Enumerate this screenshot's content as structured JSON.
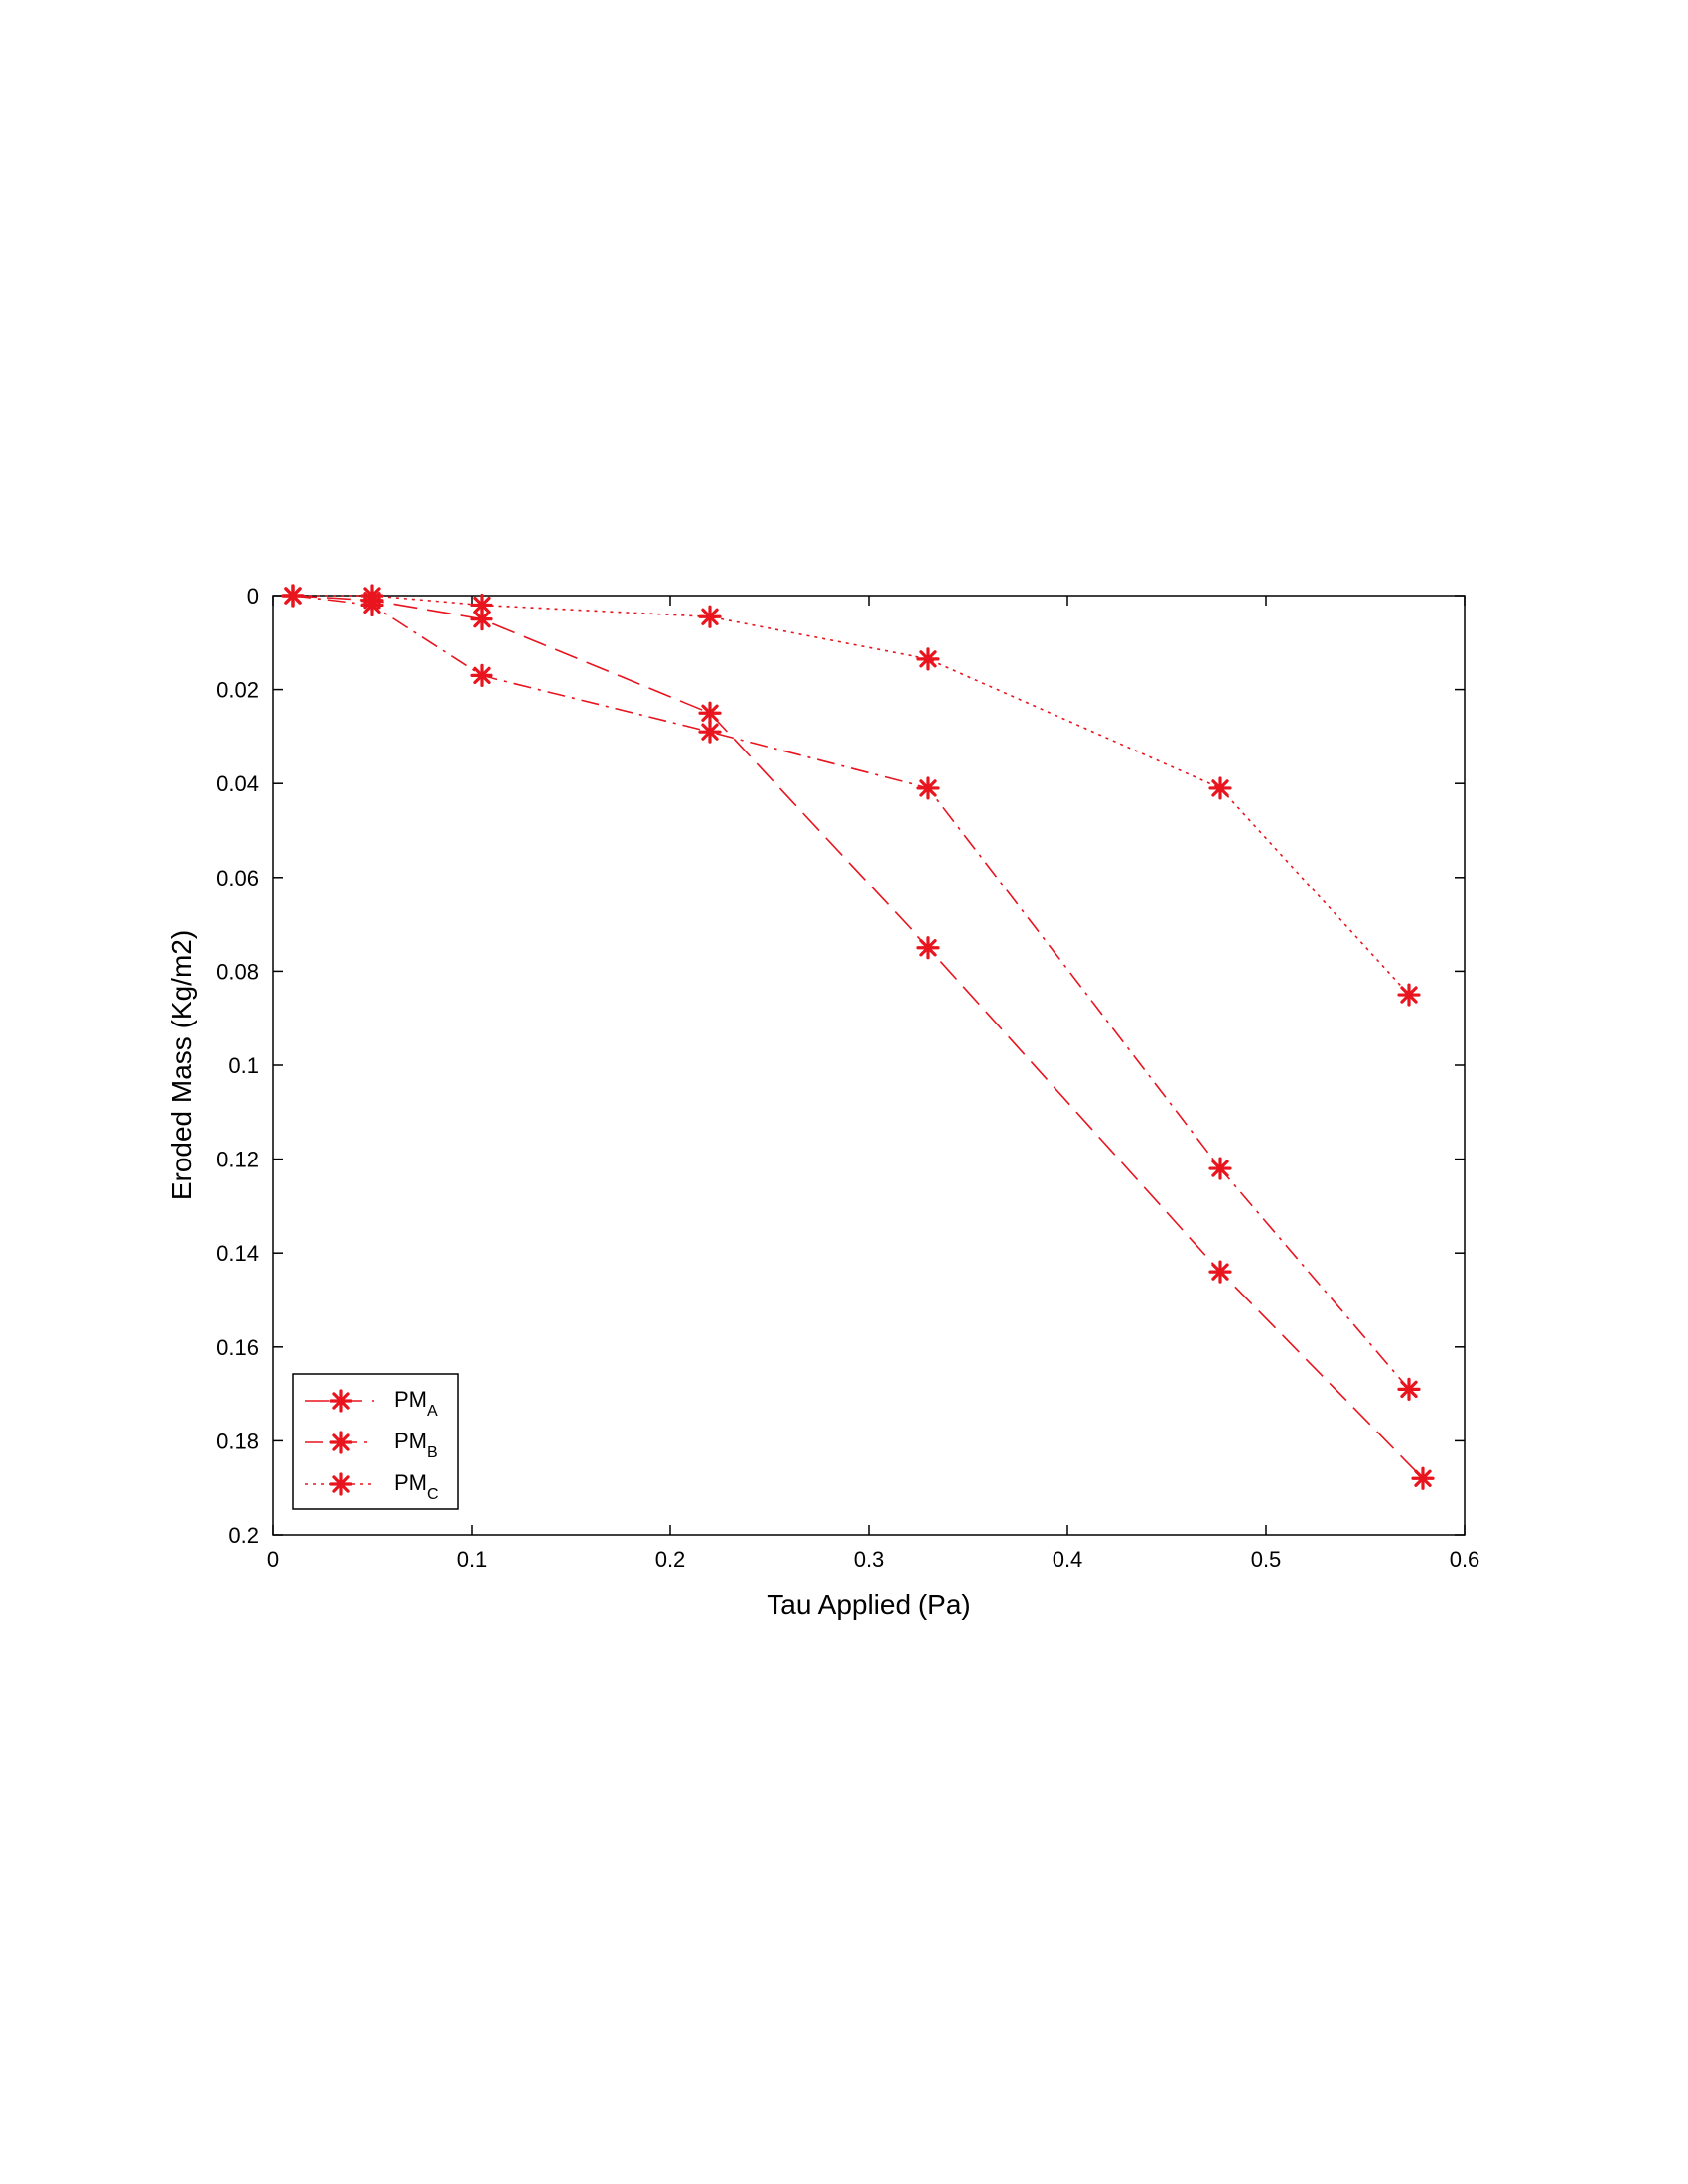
{
  "chart_data": {
    "type": "line",
    "title": "",
    "xlabel": "Tau Applied  (Pa)",
    "ylabel": "Eroded Mass  (Kg/m2)",
    "xlim": [
      0,
      0.6
    ],
    "ylim": [
      0,
      0.2
    ],
    "y_reversed": true,
    "grid": false,
    "legend_position": "bottom-left",
    "marker": "asterisk",
    "color": "#e8141e",
    "xticks": [
      "0",
      "0.1",
      "0.2",
      "0.3",
      "0.4",
      "0.5",
      "0.6"
    ],
    "yticks": [
      "0",
      "0.02",
      "0.04",
      "0.06",
      "0.08",
      "0.1",
      "0.12",
      "0.14",
      "0.16",
      "0.18",
      "0.2"
    ],
    "series": [
      {
        "name": "PM",
        "sub": "A",
        "line_style": "dashed",
        "points": [
          [
            0.01,
            0.0
          ],
          [
            0.05,
            0.001
          ],
          [
            0.105,
            0.005
          ],
          [
            0.22,
            0.025
          ],
          [
            0.33,
            0.075
          ],
          [
            0.477,
            0.144
          ],
          [
            0.579,
            0.188
          ]
        ]
      },
      {
        "name": "PM",
        "sub": "B",
        "line_style": "dash-dot",
        "points": [
          [
            0.01,
            0.0
          ],
          [
            0.05,
            0.002
          ],
          [
            0.105,
            0.017
          ],
          [
            0.22,
            0.029
          ],
          [
            0.33,
            0.041
          ],
          [
            0.477,
            0.122
          ],
          [
            0.572,
            0.169
          ]
        ]
      },
      {
        "name": "PM",
        "sub": "C",
        "line_style": "dotted",
        "points": [
          [
            0.01,
            0.0
          ],
          [
            0.05,
            0.0
          ],
          [
            0.105,
            0.002
          ],
          [
            0.22,
            0.0045
          ],
          [
            0.33,
            0.0135
          ],
          [
            0.477,
            0.041
          ],
          [
            0.572,
            0.085
          ]
        ]
      }
    ]
  }
}
